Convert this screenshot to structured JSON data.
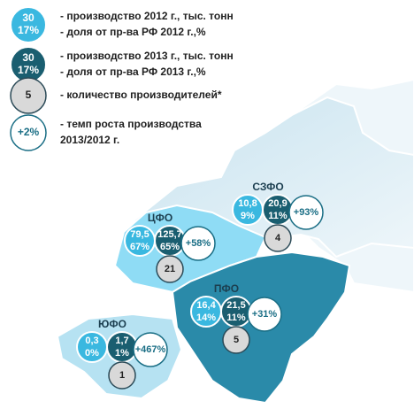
{
  "legend": {
    "items": [
      {
        "kind": "prod2012",
        "values": [
          "30",
          "17%"
        ],
        "labels": [
          "- производство 2012 г., тыс. тонн",
          "- доля от пр-ва РФ 2012 г.,%"
        ]
      },
      {
        "kind": "prod2013",
        "values": [
          "30",
          "17%"
        ],
        "labels": [
          "- производство 2013 г., тыс. тонн",
          "- доля от пр-ва РФ 2013 г.,%"
        ]
      },
      {
        "kind": "producers",
        "values": [
          "5"
        ],
        "labels": [
          "- количество производителей*"
        ]
      },
      {
        "kind": "growth",
        "values": [
          "+2%"
        ],
        "labels": [
          "- темп роста производства",
          "2013/2012 г."
        ]
      }
    ]
  },
  "regions": [
    {
      "name": "СЗФО",
      "production_2012": "10,8",
      "share_2012": "9%",
      "production_2013": "20,9",
      "share_2013": "11%",
      "growth": "+93%",
      "producers": "4"
    },
    {
      "name": "ЦФО",
      "production_2012": "79,5",
      "share_2012": "67%",
      "production_2013": "125,7",
      "share_2013": "65%",
      "growth": "+58%",
      "producers": "21"
    },
    {
      "name": "ПФО",
      "production_2012": "16,4",
      "share_2012": "14%",
      "production_2013": "21,5",
      "share_2013": "11%",
      "growth": "+31%",
      "producers": "5"
    },
    {
      "name": "ЮФО",
      "production_2012": "0,3",
      "share_2012": "0%",
      "production_2013": "1,7",
      "share_2013": "1%",
      "growth": "+467%",
      "producers": "1"
    }
  ]
}
